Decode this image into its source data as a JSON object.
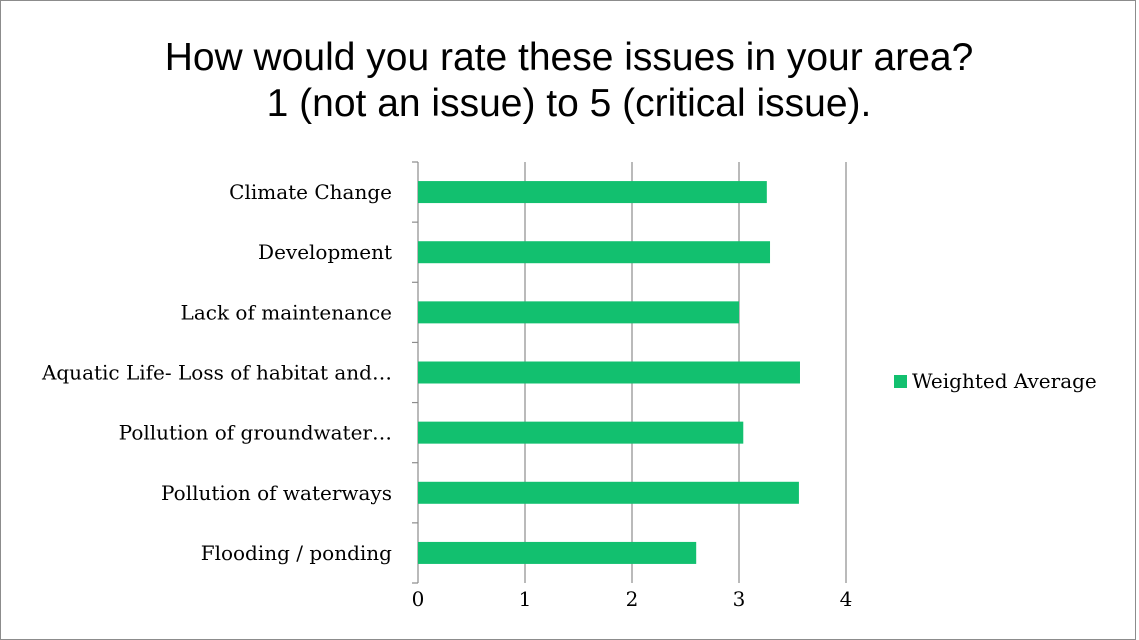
{
  "chart_data": {
    "type": "bar",
    "orientation": "horizontal",
    "title": "How would you rate these issues in your area?",
    "subtitle": "1 (not an issue) to 5 (critical issue).",
    "categories": [
      "Climate Change",
      "Development",
      "Lack of maintenance",
      "Aquatic Life- Loss of habitat and…",
      "Pollution of groundwater…",
      "Pollution of waterways",
      "Flooding / ponding"
    ],
    "series": [
      {
        "name": "Weighted Average",
        "color": "#12c06f",
        "values": [
          3.26,
          3.29,
          3.0,
          3.57,
          3.04,
          3.56,
          2.6
        ]
      }
    ],
    "xlim": [
      0,
      4
    ],
    "x_ticks": [
      "0",
      "1",
      "2",
      "3",
      "4"
    ],
    "grid": "vertical",
    "legend": "right"
  }
}
